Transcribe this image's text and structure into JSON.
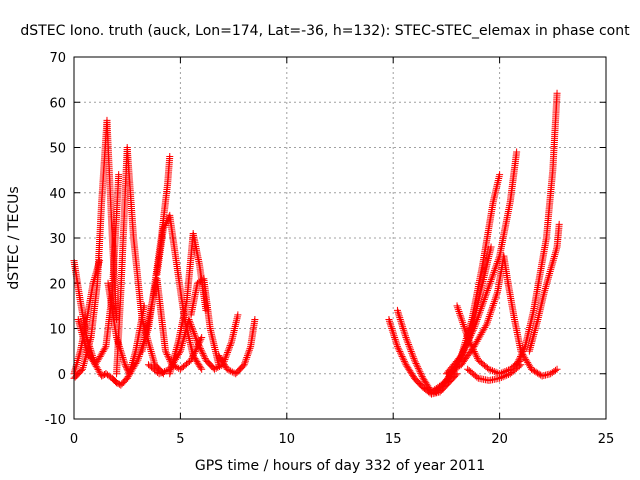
{
  "chart_data": {
    "type": "scatter",
    "title": "dSTEC Iono. truth (auck, Lon=174, Lat=-36, h=132): STEC-STEC_elemax in phase cont",
    "xlabel": "GPS time / hours of day 332 of year 2011",
    "ylabel": "dSTEC  / TECUs",
    "xlim": [
      0,
      25
    ],
    "ylim": [
      -10,
      70
    ],
    "xticks": [
      0,
      5,
      10,
      15,
      20,
      25
    ],
    "yticks": [
      -10,
      0,
      10,
      20,
      30,
      40,
      50,
      60,
      70
    ],
    "grid": true,
    "marker": "+",
    "color": "#ff0000",
    "series": [
      {
        "x": [
          0.0,
          0.3,
          0.6,
          1.0,
          1.3,
          1.5
        ],
        "y": [
          25,
          16,
          8,
          2,
          -0.5,
          0
        ]
      },
      {
        "x": [
          0.0,
          0.4,
          0.8,
          1.1,
          1.3,
          1.55,
          1.8,
          2.0
        ],
        "y": [
          -1,
          1,
          8,
          20,
          38,
          56,
          30,
          12
        ]
      },
      {
        "x": [
          0.0,
          0.3,
          0.6,
          0.9,
          1.2
        ],
        "y": [
          0,
          5,
          12,
          20,
          25
        ]
      },
      {
        "x": [
          0.2,
          0.6,
          1.0,
          1.5,
          1.8,
          2.0,
          2.1
        ],
        "y": [
          12,
          5,
          2,
          6,
          18,
          35,
          44
        ]
      },
      {
        "x": [
          1.6,
          2.0,
          2.4,
          2.6,
          2.9,
          3.3
        ],
        "y": [
          20,
          8,
          2,
          0,
          5,
          15
        ]
      },
      {
        "x": [
          1.5,
          1.8,
          2.0,
          2.2,
          2.5
        ],
        "y": [
          0,
          -1,
          -2,
          -2.5,
          -1
        ]
      },
      {
        "x": [
          2.0,
          2.2,
          2.5,
          2.8,
          3.2,
          3.8,
          4.2
        ],
        "y": [
          0,
          18,
          50,
          30,
          12,
          2,
          0
        ]
      },
      {
        "x": [
          2.5,
          3.0,
          3.5,
          3.8,
          4.1,
          4.4,
          4.5
        ],
        "y": [
          -1,
          3,
          10,
          20,
          30,
          42,
          48
        ]
      },
      {
        "x": [
          3.2,
          3.6,
          3.9,
          4.1,
          4.3,
          4.6,
          5.0,
          5.5,
          6.0
        ],
        "y": [
          5,
          14,
          21,
          13,
          5,
          2,
          1,
          3,
          8
        ]
      },
      {
        "x": [
          3.9,
          4.2,
          4.5,
          4.8,
          5.2,
          5.6,
          6.0
        ],
        "y": [
          22,
          32,
          35,
          25,
          12,
          4,
          1
        ]
      },
      {
        "x": [
          3.5,
          4.0,
          4.5,
          5.0,
          5.4
        ],
        "y": [
          2,
          0,
          1,
          5,
          12
        ]
      },
      {
        "x": [
          4.5,
          4.9,
          5.3,
          5.6,
          5.9,
          6.2
        ],
        "y": [
          0,
          7,
          16,
          31,
          24,
          14
        ]
      },
      {
        "x": [
          5.4,
          5.8,
          6.2,
          6.6,
          7.0,
          7.4,
          7.7
        ],
        "y": [
          12,
          7,
          3,
          1,
          2,
          7,
          13
        ]
      },
      {
        "x": [
          5.5,
          5.8,
          6.1,
          6.4,
          6.8
        ],
        "y": [
          13,
          20,
          21,
          10,
          2
        ]
      },
      {
        "x": [
          6.8,
          7.2,
          7.6,
          8.0,
          8.3,
          8.5
        ],
        "y": [
          4,
          1,
          0,
          2,
          6,
          12
        ]
      },
      {
        "x": [
          14.8,
          15.2,
          15.6,
          16.0,
          16.4,
          16.8,
          17.2
        ],
        "y": [
          12,
          6,
          2,
          -1,
          -3,
          -4.5,
          -4
        ]
      },
      {
        "x": [
          15.2,
          15.6,
          16.0,
          16.4,
          16.8,
          17.2,
          17.6,
          18.0
        ],
        "y": [
          14,
          8,
          3,
          -1,
          -4,
          -4,
          -2,
          0
        ]
      },
      {
        "x": [
          16.8,
          17.4,
          18.0,
          18.6,
          19.2,
          19.6
        ],
        "y": [
          -4,
          -2,
          2,
          8,
          20,
          28
        ]
      },
      {
        "x": [
          17.0,
          17.6,
          18.2,
          18.7,
          19.2,
          19.7,
          20.0
        ],
        "y": [
          -4,
          -1,
          4,
          12,
          24,
          38,
          44
        ]
      },
      {
        "x": [
          17.5,
          18.2,
          18.8,
          19.4,
          20.0,
          20.5,
          20.8
        ],
        "y": [
          0,
          4,
          10,
          18,
          26,
          38,
          49
        ]
      },
      {
        "x": [
          17.6,
          18.2,
          18.8,
          19.4,
          19.9,
          20.2,
          20.4
        ],
        "y": [
          0,
          2,
          6,
          11,
          18,
          26,
          20
        ]
      },
      {
        "x": [
          18.0,
          18.5,
          19.0,
          19.5,
          20.0,
          20.5,
          21.0
        ],
        "y": [
          15,
          8,
          3,
          1,
          0,
          1,
          3
        ]
      },
      {
        "x": [
          18.5,
          19.0,
          19.5,
          20.0,
          20.5,
          21.0
        ],
        "y": [
          1,
          -1,
          -1.5,
          -1,
          0,
          2
        ]
      },
      {
        "x": [
          20.4,
          20.7,
          21.0,
          21.5,
          22.0,
          22.4,
          22.7
        ],
        "y": [
          20,
          12,
          5,
          1,
          -0.5,
          0,
          1
        ]
      },
      {
        "x": [
          20.8,
          21.2,
          21.6,
          21.9,
          22.2,
          22.5,
          22.7
        ],
        "y": [
          2,
          6,
          14,
          22,
          30,
          45,
          62
        ]
      },
      {
        "x": [
          21.4,
          21.8,
          22.1,
          22.4,
          22.7,
          22.8
        ],
        "y": [
          5,
          12,
          18,
          23,
          28,
          33
        ]
      }
    ]
  }
}
